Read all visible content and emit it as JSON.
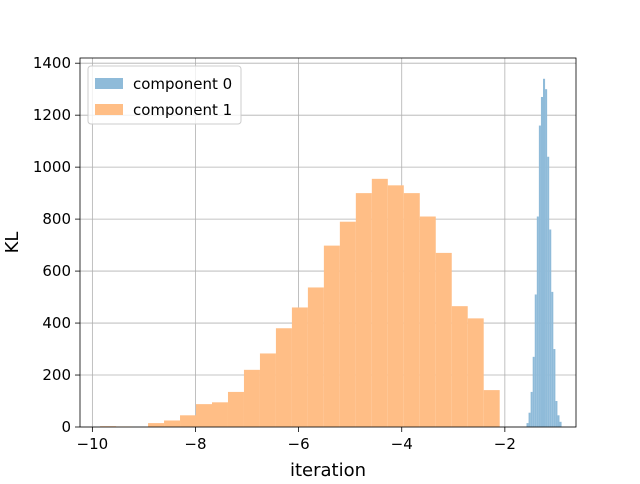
{
  "chart_data": {
    "type": "bar",
    "subtype": "histogram",
    "title": "",
    "xlabel": "iteration",
    "ylabel": "KL",
    "xlim": [
      -10.24,
      -0.62
    ],
    "ylim": [
      0,
      1420
    ],
    "xticks": [
      -10,
      -8,
      -6,
      -4,
      -2
    ],
    "xtick_labels": [
      "−10",
      "−8",
      "−6",
      "−4",
      "−2"
    ],
    "yticks": [
      0,
      200,
      400,
      600,
      800,
      1000,
      1200,
      1400
    ],
    "ytick_labels": [
      "0",
      "200",
      "400",
      "600",
      "800",
      "1000",
      "1200",
      "1400"
    ],
    "grid": true,
    "legend_position": "upper-left",
    "series": [
      {
        "name": "component 1",
        "color": "#ffbe86",
        "bin_edges": [
          -9.85,
          -9.54,
          -9.23,
          -8.92,
          -8.61,
          -8.3,
          -7.99,
          -7.68,
          -7.37,
          -7.06,
          -6.75,
          -6.44,
          -6.13,
          -5.82,
          -5.51,
          -5.2,
          -4.89,
          -4.58,
          -4.27,
          -3.96,
          -3.65,
          -3.34,
          -3.03,
          -2.72,
          -2.41,
          -2.1
        ],
        "counts": [
          3,
          2,
          0,
          15,
          25,
          45,
          88,
          95,
          135,
          220,
          283,
          380,
          460,
          537,
          698,
          790,
          900,
          955,
          930,
          900,
          810,
          670,
          465,
          418,
          142
        ]
      },
      {
        "name": "component 0",
        "color": "#8fbbd9",
        "bin_edges": [
          -1.58,
          -1.54,
          -1.5,
          -1.46,
          -1.42,
          -1.38,
          -1.34,
          -1.3,
          -1.26,
          -1.22,
          -1.18,
          -1.14,
          -1.1,
          -1.06,
          -1.02,
          -0.98,
          -0.94,
          -0.9
        ],
        "counts": [
          15,
          55,
          135,
          270,
          510,
          810,
          1160,
          1270,
          1340,
          1300,
          1040,
          760,
          520,
          300,
          100,
          45,
          20
        ]
      }
    ]
  }
}
